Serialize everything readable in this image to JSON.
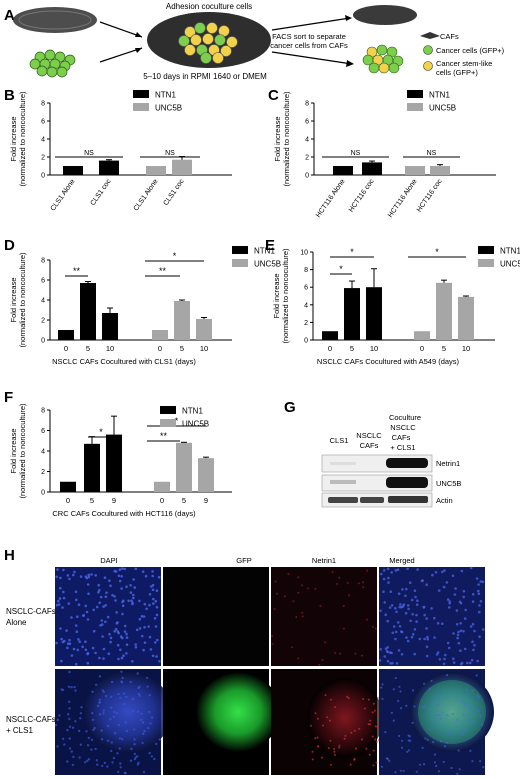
{
  "panel_letters": [
    "A",
    "B",
    "C",
    "D",
    "E",
    "F",
    "G",
    "H"
  ],
  "panel_a": {
    "center_label": "Adhesion coculture cells",
    "culture_label": "5–10 days in RPMI 1640 or DMEM",
    "facs_line1": "FACS sort to separate",
    "facs_line2": "cancer cells from CAFs",
    "legend": [
      "CAFs",
      "Cancer cells (GFP+)",
      "Cancer stem-like",
      "cells (GFP+)"
    ]
  },
  "colors": {
    "ntn1": "#000000",
    "unc5b": "#a6a6a6",
    "nucleus_green": "#7ccf4a",
    "nucleus_yellow": "#f2d24b"
  },
  "chart_data": [
    {
      "panel": "B",
      "type": "bar",
      "ylabel": "Fold increase",
      "ylabel2": "(normalized to noncoculture)",
      "ylim": [
        0,
        8
      ],
      "yticks": [
        0,
        2,
        4,
        6,
        8
      ],
      "categories": [
        "CLS1 Alone",
        "CLS1 coc",
        "CLS1 Alone",
        "CLS1 coc"
      ],
      "series": [
        {
          "name": "NTN1",
          "values": [
            1.0,
            1.6,
            null,
            null
          ],
          "errors": [
            0,
            0.1,
            0,
            0
          ]
        },
        {
          "name": "UNC5B",
          "values": [
            null,
            null,
            1.0,
            1.7
          ],
          "errors": [
            0,
            0,
            0,
            0.35
          ]
        }
      ],
      "annotations": [
        {
          "text": "NS",
          "group": 0
        },
        {
          "text": "NS",
          "group": 1
        }
      ]
    },
    {
      "panel": "C",
      "type": "bar",
      "ylabel": "Fold increase",
      "ylabel2": "(normalized to noncoculture)",
      "ylim": [
        0,
        8
      ],
      "yticks": [
        0,
        2,
        4,
        6,
        8
      ],
      "categories": [
        "HCT116 Alone",
        "HCT116 coc",
        "HCT116 Alone",
        "HCT116 coc"
      ],
      "series": [
        {
          "name": "NTN1",
          "values": [
            1.0,
            1.4,
            null,
            null
          ],
          "errors": [
            0,
            0.15,
            0,
            0
          ]
        },
        {
          "name": "UNC5B",
          "values": [
            null,
            null,
            1.0,
            1.0
          ],
          "errors": [
            0,
            0,
            0,
            0.15
          ]
        }
      ],
      "annotations": [
        {
          "text": "NS",
          "group": 0
        },
        {
          "text": "NS",
          "group": 1
        }
      ]
    },
    {
      "panel": "D",
      "type": "bar",
      "ylabel": "Fold increase",
      "ylabel2": "(normalized to noncoculture)",
      "xlabel": "NSCLC CAFs Cocultured with CLS1 (days)",
      "ylim": [
        0,
        8
      ],
      "yticks": [
        0,
        2,
        4,
        6,
        8
      ],
      "categories": [
        "0",
        "5",
        "10",
        "0",
        "5",
        "10"
      ],
      "series": [
        {
          "name": "NTN1",
          "values": [
            1.0,
            5.7,
            2.7,
            null,
            null,
            null
          ],
          "errors": [
            0,
            0.15,
            0.5,
            0,
            0,
            0
          ]
        },
        {
          "name": "UNC5B",
          "values": [
            null,
            null,
            null,
            1.0,
            3.9,
            2.1
          ],
          "errors": [
            0,
            0,
            0,
            0,
            0.1,
            0.15
          ]
        }
      ],
      "annotations": [
        {
          "text": "**"
        },
        {
          "text": "*"
        },
        {
          "text": "**"
        }
      ]
    },
    {
      "panel": "E",
      "type": "bar",
      "ylabel": "Fold increase",
      "ylabel2": "(normalized to noncoculture)",
      "xlabel": "NSCLC CAFs Cocultured with A549 (days)",
      "ylim": [
        0,
        10
      ],
      "yticks": [
        0,
        2,
        4,
        6,
        8,
        10
      ],
      "categories": [
        "0",
        "5",
        "10",
        "0",
        "5",
        "10"
      ],
      "series": [
        {
          "name": "NTN1",
          "values": [
            1.0,
            5.9,
            6.0,
            null,
            null,
            null
          ],
          "errors": [
            0,
            0.8,
            2.1,
            0,
            0,
            0
          ]
        },
        {
          "name": "UNC5B",
          "values": [
            null,
            null,
            null,
            1.0,
            6.5,
            4.9
          ],
          "errors": [
            0,
            0,
            0,
            0,
            0.3,
            0.1
          ]
        }
      ],
      "annotations": [
        {
          "text": "*"
        },
        {
          "text": "*"
        },
        {
          "text": "*"
        }
      ]
    },
    {
      "panel": "F",
      "type": "bar",
      "ylabel": "Fold increase",
      "ylabel2": "(normalized to noncoculture)",
      "xlabel": "CRC CAFs Cocultured with HCT116 (days)",
      "ylim": [
        0,
        8
      ],
      "yticks": [
        0,
        2,
        4,
        6,
        8
      ],
      "categories": [
        "0",
        "5",
        "9",
        "0",
        "5",
        "9"
      ],
      "series": [
        {
          "name": "NTN1",
          "values": [
            1.0,
            4.7,
            5.6,
            null,
            null,
            null
          ],
          "errors": [
            0,
            0.7,
            1.8,
            0,
            0,
            0
          ]
        },
        {
          "name": "UNC5B",
          "values": [
            null,
            null,
            null,
            1.0,
            4.8,
            3.3
          ],
          "errors": [
            0,
            0,
            0,
            0,
            0.05,
            0.1
          ]
        }
      ],
      "annotations": [
        {
          "text": "*"
        },
        {
          "text": "*"
        },
        {
          "text": "**"
        }
      ]
    }
  ],
  "panel_g": {
    "columns": [
      "CLS1",
      "NSCLC",
      "CAFs",
      "Coculture",
      "NSCLC",
      "CAFs",
      "+ CLS1"
    ],
    "rows": [
      "Netrin1",
      "UNC5B",
      "Actin"
    ]
  },
  "panel_h": {
    "columns": [
      "DAPI",
      "GFP",
      "Netrin1",
      "Merged"
    ],
    "rows": [
      [
        "NSCLC-CAFs",
        "Alone"
      ],
      [
        "NSCLC-CAFs",
        "+ CLS1"
      ]
    ]
  }
}
